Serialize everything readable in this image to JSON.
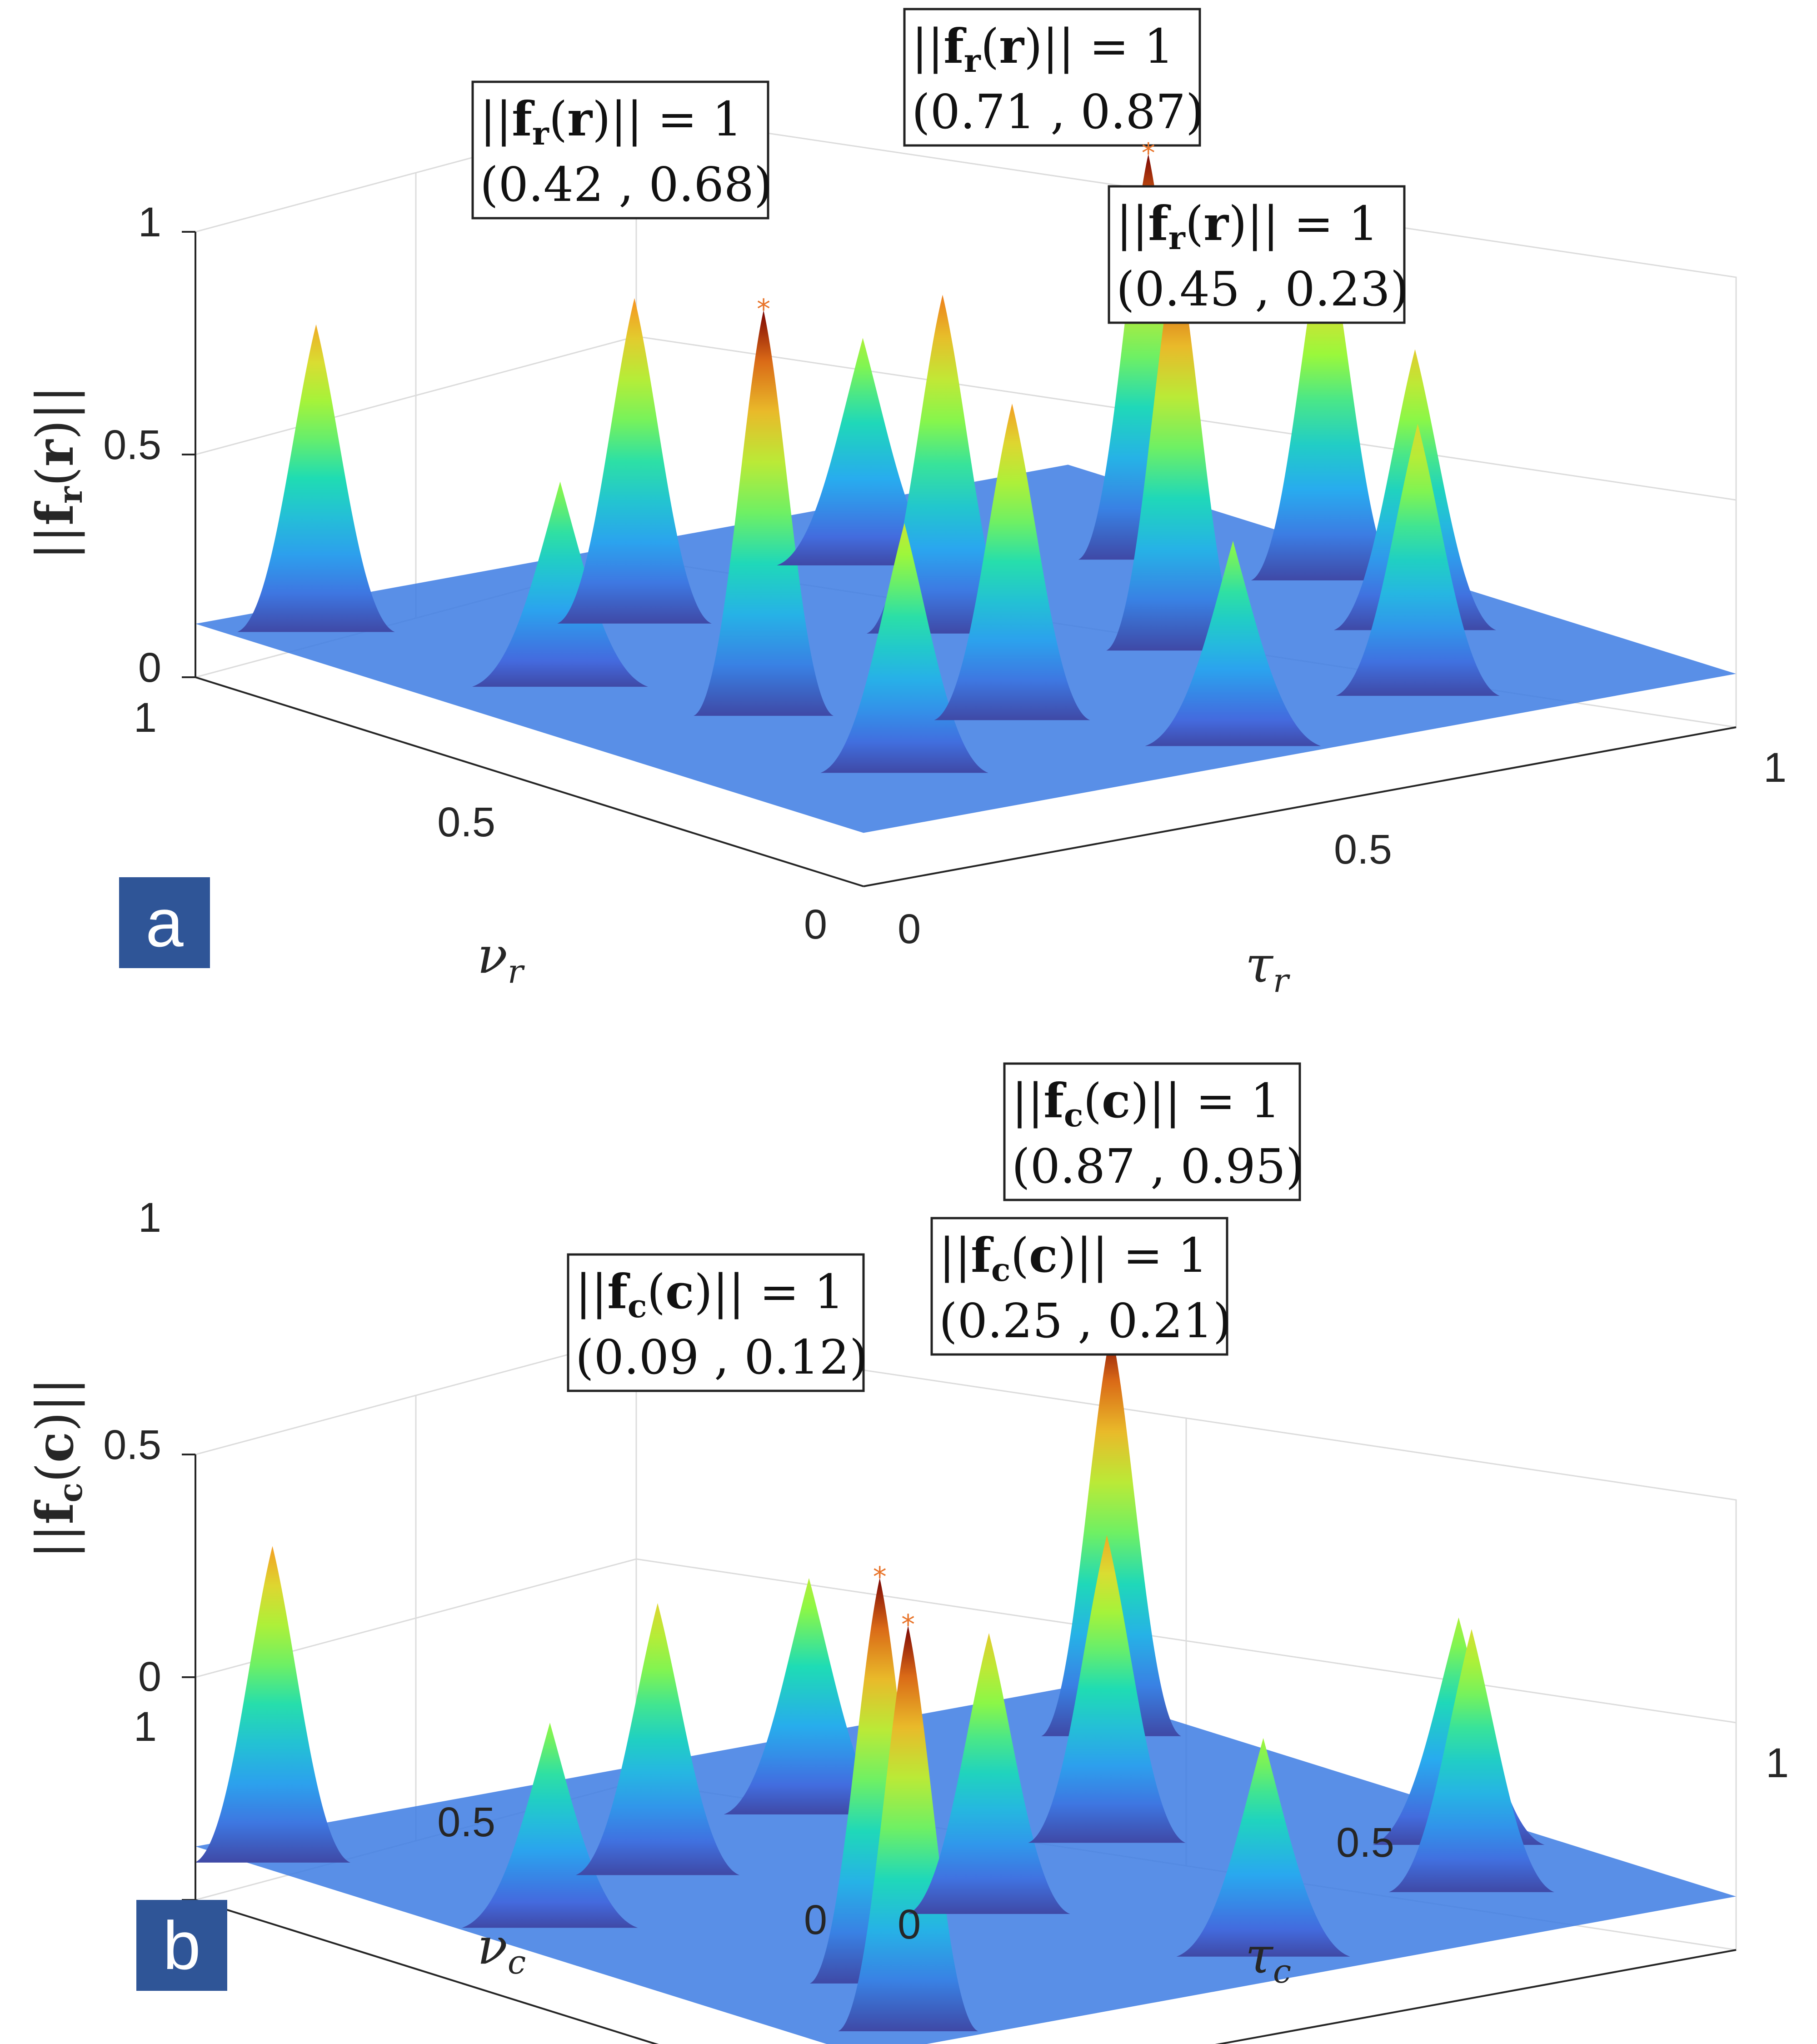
{
  "chart_data": [
    {
      "type": "surface",
      "panel_label": "a",
      "zlabel_parts": [
        "||",
        "f",
        "r",
        "(",
        "r",
        ")||"
      ],
      "xlabel_sym": "ν",
      "xlabel_sub": "r",
      "ylabel_sym": "τ",
      "ylabel_sub": "r",
      "nu_ticks": [
        "0",
        "0.5",
        "1"
      ],
      "tau_ticks": [
        "0",
        "0.5",
        "1"
      ],
      "z_ticks": [
        "0",
        "0.5",
        "1"
      ],
      "zlim": [
        0,
        1
      ],
      "annotations": [
        {
          "line1": "||f_r(r)|| = 1",
          "line2": "(0.42 , 0.68)",
          "norm_prefix": "||",
          "norm_f": "f",
          "norm_sub": "r",
          "norm_arg": "(r)",
          "norm_suffix": "|| = 1",
          "coords": "(0.42 , 0.68)",
          "z": 1
        },
        {
          "line1": "||f_r(r)|| = 1",
          "line2": "(0.71 , 0.87)",
          "norm_prefix": "||",
          "norm_f": "f",
          "norm_sub": "r",
          "norm_arg": "(r)",
          "norm_suffix": "|| = 1",
          "coords": "(0.71 , 0.87)",
          "z": 1
        },
        {
          "line1": "||f_r(r)|| = 1",
          "line2": "(0.45 , 0.23)",
          "norm_prefix": "||",
          "norm_f": "f",
          "norm_sub": "r",
          "norm_arg": "(r)",
          "norm_suffix": "|| = 1",
          "coords": "(0.45 , 0.23)",
          "z": 1
        }
      ],
      "peaks": [
        {
          "nu": 0.42,
          "tau": 0.68,
          "z": 1.0
        },
        {
          "nu": 0.71,
          "tau": 0.87,
          "z": 1.0
        },
        {
          "nu": 0.45,
          "tau": 0.23,
          "z": 1.0
        },
        {
          "nu": 0.95,
          "tau": 0.1,
          "z": 0.78
        },
        {
          "nu": 0.8,
          "tau": 0.35,
          "z": 0.82
        },
        {
          "nu": 0.6,
          "tau": 0.55,
          "z": 0.85
        },
        {
          "nu": 0.3,
          "tau": 0.4,
          "z": 0.8
        },
        {
          "nu": 0.15,
          "tau": 0.75,
          "z": 0.7
        },
        {
          "nu": 0.55,
          "tau": 0.95,
          "z": 0.9
        },
        {
          "nu": 0.2,
          "tau": 0.2,
          "z": 0.65
        },
        {
          "nu": 0.65,
          "tau": 0.15,
          "z": 0.55
        },
        {
          "nu": 0.85,
          "tau": 0.65,
          "z": 0.6
        },
        {
          "nu": 0.35,
          "tau": 0.9,
          "z": 0.72
        },
        {
          "nu": 0.1,
          "tau": 0.5,
          "z": 0.55
        }
      ]
    },
    {
      "type": "surface",
      "panel_label": "b",
      "zlabel_parts": [
        "||",
        "f",
        "c",
        "(",
        "c",
        ")||"
      ],
      "xlabel_sym": "ν",
      "xlabel_sub": "c",
      "ylabel_sym": "τ",
      "ylabel_sub": "c",
      "nu_ticks": [
        "0",
        "0.5",
        "1"
      ],
      "tau_ticks": [
        "0",
        "0.5",
        "1"
      ],
      "z_ticks": [
        "0",
        "0.5",
        "1"
      ],
      "zlim": [
        0,
        1
      ],
      "annotations": [
        {
          "line1": "||f_c(c)|| = 1",
          "line2": "(0.87 , 0.95)",
          "norm_prefix": "||",
          "norm_f": "f",
          "norm_sub": "c",
          "norm_arg": "(c)",
          "norm_suffix": "|| = 1",
          "coords": "(0.87 , 0.95)",
          "z": 1
        },
        {
          "line1": "||f_c(c)|| = 1",
          "line2": "(0.25 , 0.21)",
          "norm_prefix": "||",
          "norm_f": "f",
          "norm_sub": "c",
          "norm_arg": "(c)",
          "norm_suffix": "|| = 1",
          "coords": "(0.25 , 0.21)",
          "z": 1
        },
        {
          "line1": "||f_c(c)|| = 1",
          "line2": "(0.09 , 0.12)",
          "norm_prefix": "||",
          "norm_f": "f",
          "norm_sub": "c",
          "norm_arg": "(c)",
          "norm_suffix": "|| = 1",
          "coords": "(0.09 , 0.12)",
          "z": 1
        }
      ],
      "peaks": [
        {
          "nu": 0.87,
          "tau": 0.95,
          "z": 1.0
        },
        {
          "nu": 0.25,
          "tau": 0.21,
          "z": 1.0
        },
        {
          "nu": 0.09,
          "tau": 0.12,
          "z": 1.0
        },
        {
          "nu": 0.95,
          "tau": 0.05,
          "z": 0.8
        },
        {
          "nu": 0.2,
          "tau": 0.85,
          "z": 0.68
        },
        {
          "nu": 0.4,
          "tau": 0.45,
          "z": 0.72
        },
        {
          "nu": 0.7,
          "tau": 0.3,
          "z": 0.7
        },
        {
          "nu": 0.55,
          "tau": 0.7,
          "z": 0.78
        },
        {
          "nu": 0.35,
          "tau": 0.95,
          "z": 0.6
        },
        {
          "nu": 0.8,
          "tau": 0.55,
          "z": 0.62
        },
        {
          "nu": 0.6,
          "tau": 0.1,
          "z": 0.55
        },
        {
          "nu": 0.12,
          "tau": 0.55,
          "z": 0.58
        }
      ]
    }
  ]
}
